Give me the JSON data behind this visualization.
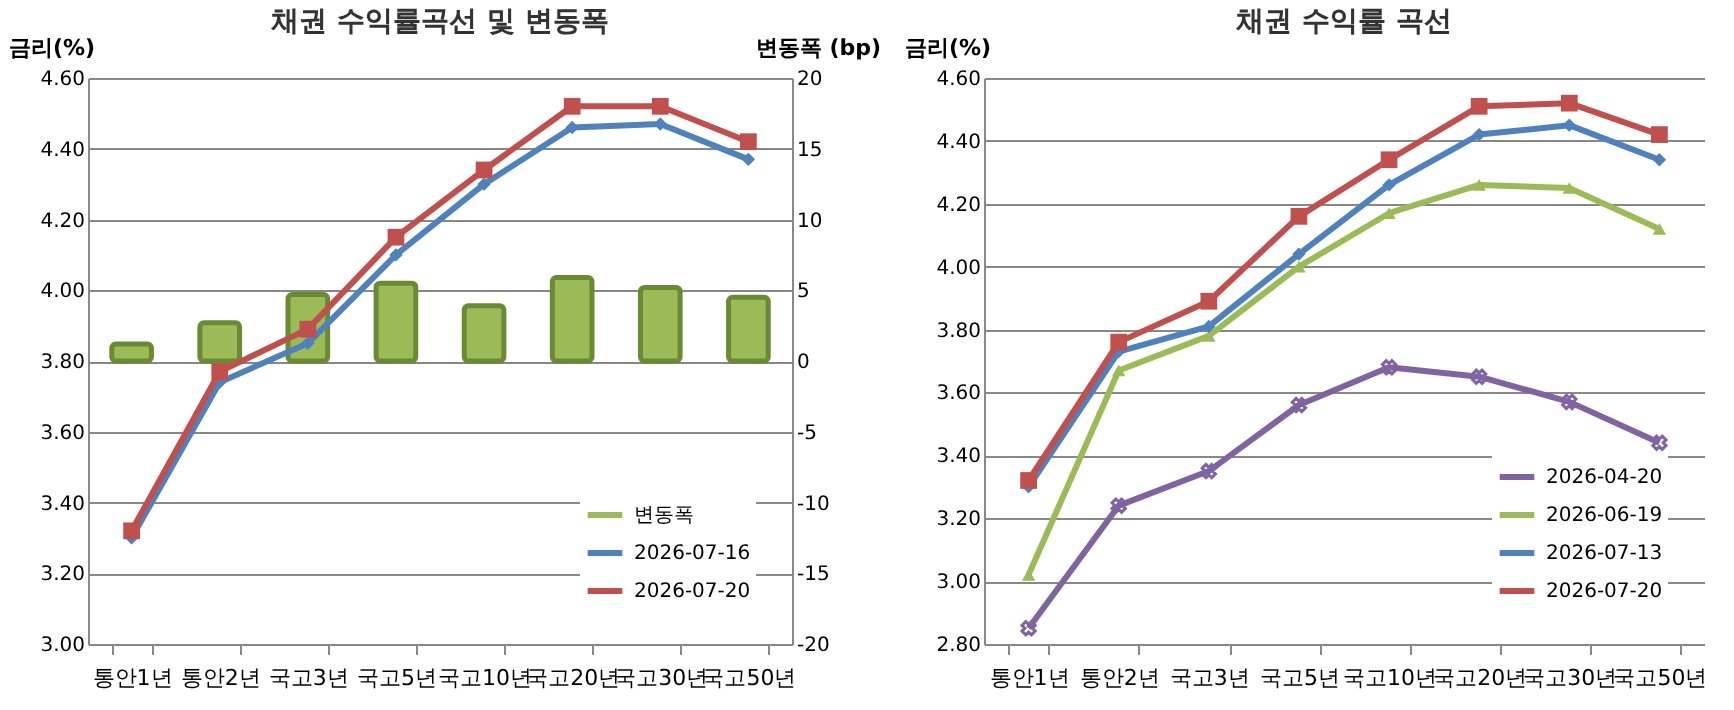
{
  "chart_data": [
    {
      "type": "line",
      "title": "채권 수익률곡선 및 변동폭",
      "ylabel": "금리(%)",
      "y2label": "변동폭 (bp)",
      "categories": [
        "통안1년",
        "통안2년",
        "국고3년",
        "국고5년",
        "국고10년",
        "국고20년",
        "국고30년",
        "국고50년"
      ],
      "series": [
        {
          "name": "변동폭",
          "type": "bar",
          "axis": "y2",
          "color": "#9bbb59",
          "values": [
            1.2,
            2.7,
            4.7,
            5.5,
            3.9,
            5.9,
            5.2,
            4.5
          ]
        },
        {
          "name": "2026-07-16",
          "color": "#4f81bd",
          "marker": "diamond",
          "values": [
            3.3,
            3.74,
            3.85,
            4.1,
            4.3,
            4.46,
            4.47,
            4.37
          ]
        },
        {
          "name": "2026-07-20",
          "color": "#c0504d",
          "marker": "square",
          "values": [
            3.32,
            3.77,
            3.89,
            4.15,
            4.34,
            4.52,
            4.52,
            4.42
          ]
        }
      ],
      "ylim": [
        3.0,
        4.6
      ],
      "yticks": [
        {
          "value": 3.0,
          "label": "3.00"
        },
        {
          "value": 3.2,
          "label": "3.20"
        },
        {
          "value": 3.4,
          "label": "3.40"
        },
        {
          "value": 3.6,
          "label": "3.60"
        },
        {
          "value": 3.8,
          "label": "3.80"
        },
        {
          "value": 4.0,
          "label": "4.00"
        },
        {
          "value": 4.2,
          "label": "4.20"
        },
        {
          "value": 4.4,
          "label": "4.40"
        },
        {
          "value": 4.6,
          "label": "4.60"
        }
      ],
      "y2lim": [
        -20,
        20
      ],
      "y2ticks": [
        -20,
        -15,
        -10,
        -5,
        0,
        5,
        10,
        15,
        20
      ],
      "grid": "y",
      "legend": "bottom right"
    },
    {
      "type": "line",
      "title": "채권 수익률 곡선",
      "ylabel": "금리(%)",
      "categories": [
        "통안1년",
        "통안2년",
        "국고3년",
        "국고5년",
        "국고10년",
        "국고20년",
        "국고30년",
        "국고50년"
      ],
      "series": [
        {
          "name": "2026-04-20",
          "color": "#8064a2",
          "marker": "cross",
          "values": [
            2.85,
            3.24,
            3.35,
            3.56,
            3.68,
            3.65,
            3.57,
            3.44
          ]
        },
        {
          "name": "2026-06-19",
          "color": "#9bbb59",
          "marker": "triangle",
          "values": [
            3.02,
            3.67,
            3.78,
            4.0,
            4.17,
            4.26,
            4.25,
            4.12
          ]
        },
        {
          "name": "2026-07-13",
          "color": "#4f81bd",
          "marker": "diamond",
          "values": [
            3.3,
            3.73,
            3.81,
            4.04,
            4.26,
            4.42,
            4.45,
            4.34
          ]
        },
        {
          "name": "2026-07-20",
          "color": "#c0504d",
          "marker": "square",
          "values": [
            3.32,
            3.76,
            3.89,
            4.16,
            4.34,
            4.51,
            4.52,
            4.42
          ]
        }
      ],
      "ylim": [
        2.8,
        4.6
      ],
      "yticks": [
        {
          "value": 2.8,
          "label": "2.80"
        },
        {
          "value": 3.0,
          "label": "3.00"
        },
        {
          "value": 3.2,
          "label": "3.20"
        },
        {
          "value": 3.4,
          "label": "3.40"
        },
        {
          "value": 3.6,
          "label": "3.60"
        },
        {
          "value": 3.8,
          "label": "3.80"
        },
        {
          "value": 4.0,
          "label": "4.00"
        },
        {
          "value": 4.2,
          "label": "4.20"
        },
        {
          "value": 4.4,
          "label": "4.40"
        },
        {
          "value": 4.6,
          "label": "4.60"
        }
      ],
      "grid": "y",
      "legend": "bottom right"
    }
  ]
}
